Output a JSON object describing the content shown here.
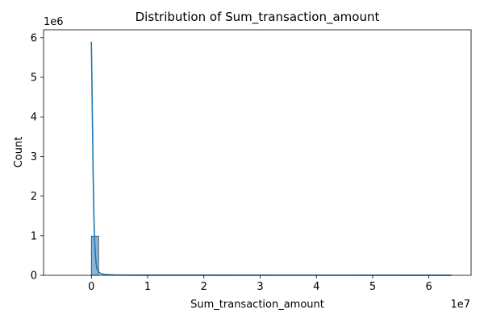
{
  "chart_data": {
    "type": "bar",
    "title": "Distribution of Sum_transaction_amount",
    "xlabel": "Sum_transaction_amount",
    "ylabel": "Count",
    "x_multiplier_label": "1e7",
    "y_multiplier_label": "1e6",
    "xlim": [
      -8500000,
      67500000
    ],
    "ylim": [
      0,
      6200000
    ],
    "xticks": [
      0,
      10000000,
      20000000,
      30000000,
      40000000,
      50000000,
      60000000
    ],
    "xtick_labels": [
      "0",
      "1",
      "2",
      "3",
      "4",
      "5",
      "6"
    ],
    "yticks": [
      0,
      1000000,
      2000000,
      3000000,
      4000000,
      5000000,
      6000000
    ],
    "ytick_labels": [
      "0",
      "1",
      "2",
      "3",
      "4",
      "5",
      "6"
    ],
    "bins": [
      {
        "x0": 0,
        "x1": 1280000,
        "count": 990000
      }
    ],
    "kde": {
      "x": [
        0,
        150000,
        300000,
        450000,
        600000,
        800000,
        1000000,
        1300000,
        1700000,
        2500000,
        4000000,
        8000000,
        64000000
      ],
      "y": [
        5900000,
        4300000,
        2700000,
        1500000,
        800000,
        350000,
        160000,
        80000,
        40000,
        20000,
        10000,
        4000,
        1500
      ]
    },
    "grid": false,
    "legend": false,
    "colors": {
      "bar_fill": "#8db6d6",
      "bar_edge": "#2a3d4d",
      "kde_line": "#1f77b4",
      "axis": "#000000"
    }
  }
}
